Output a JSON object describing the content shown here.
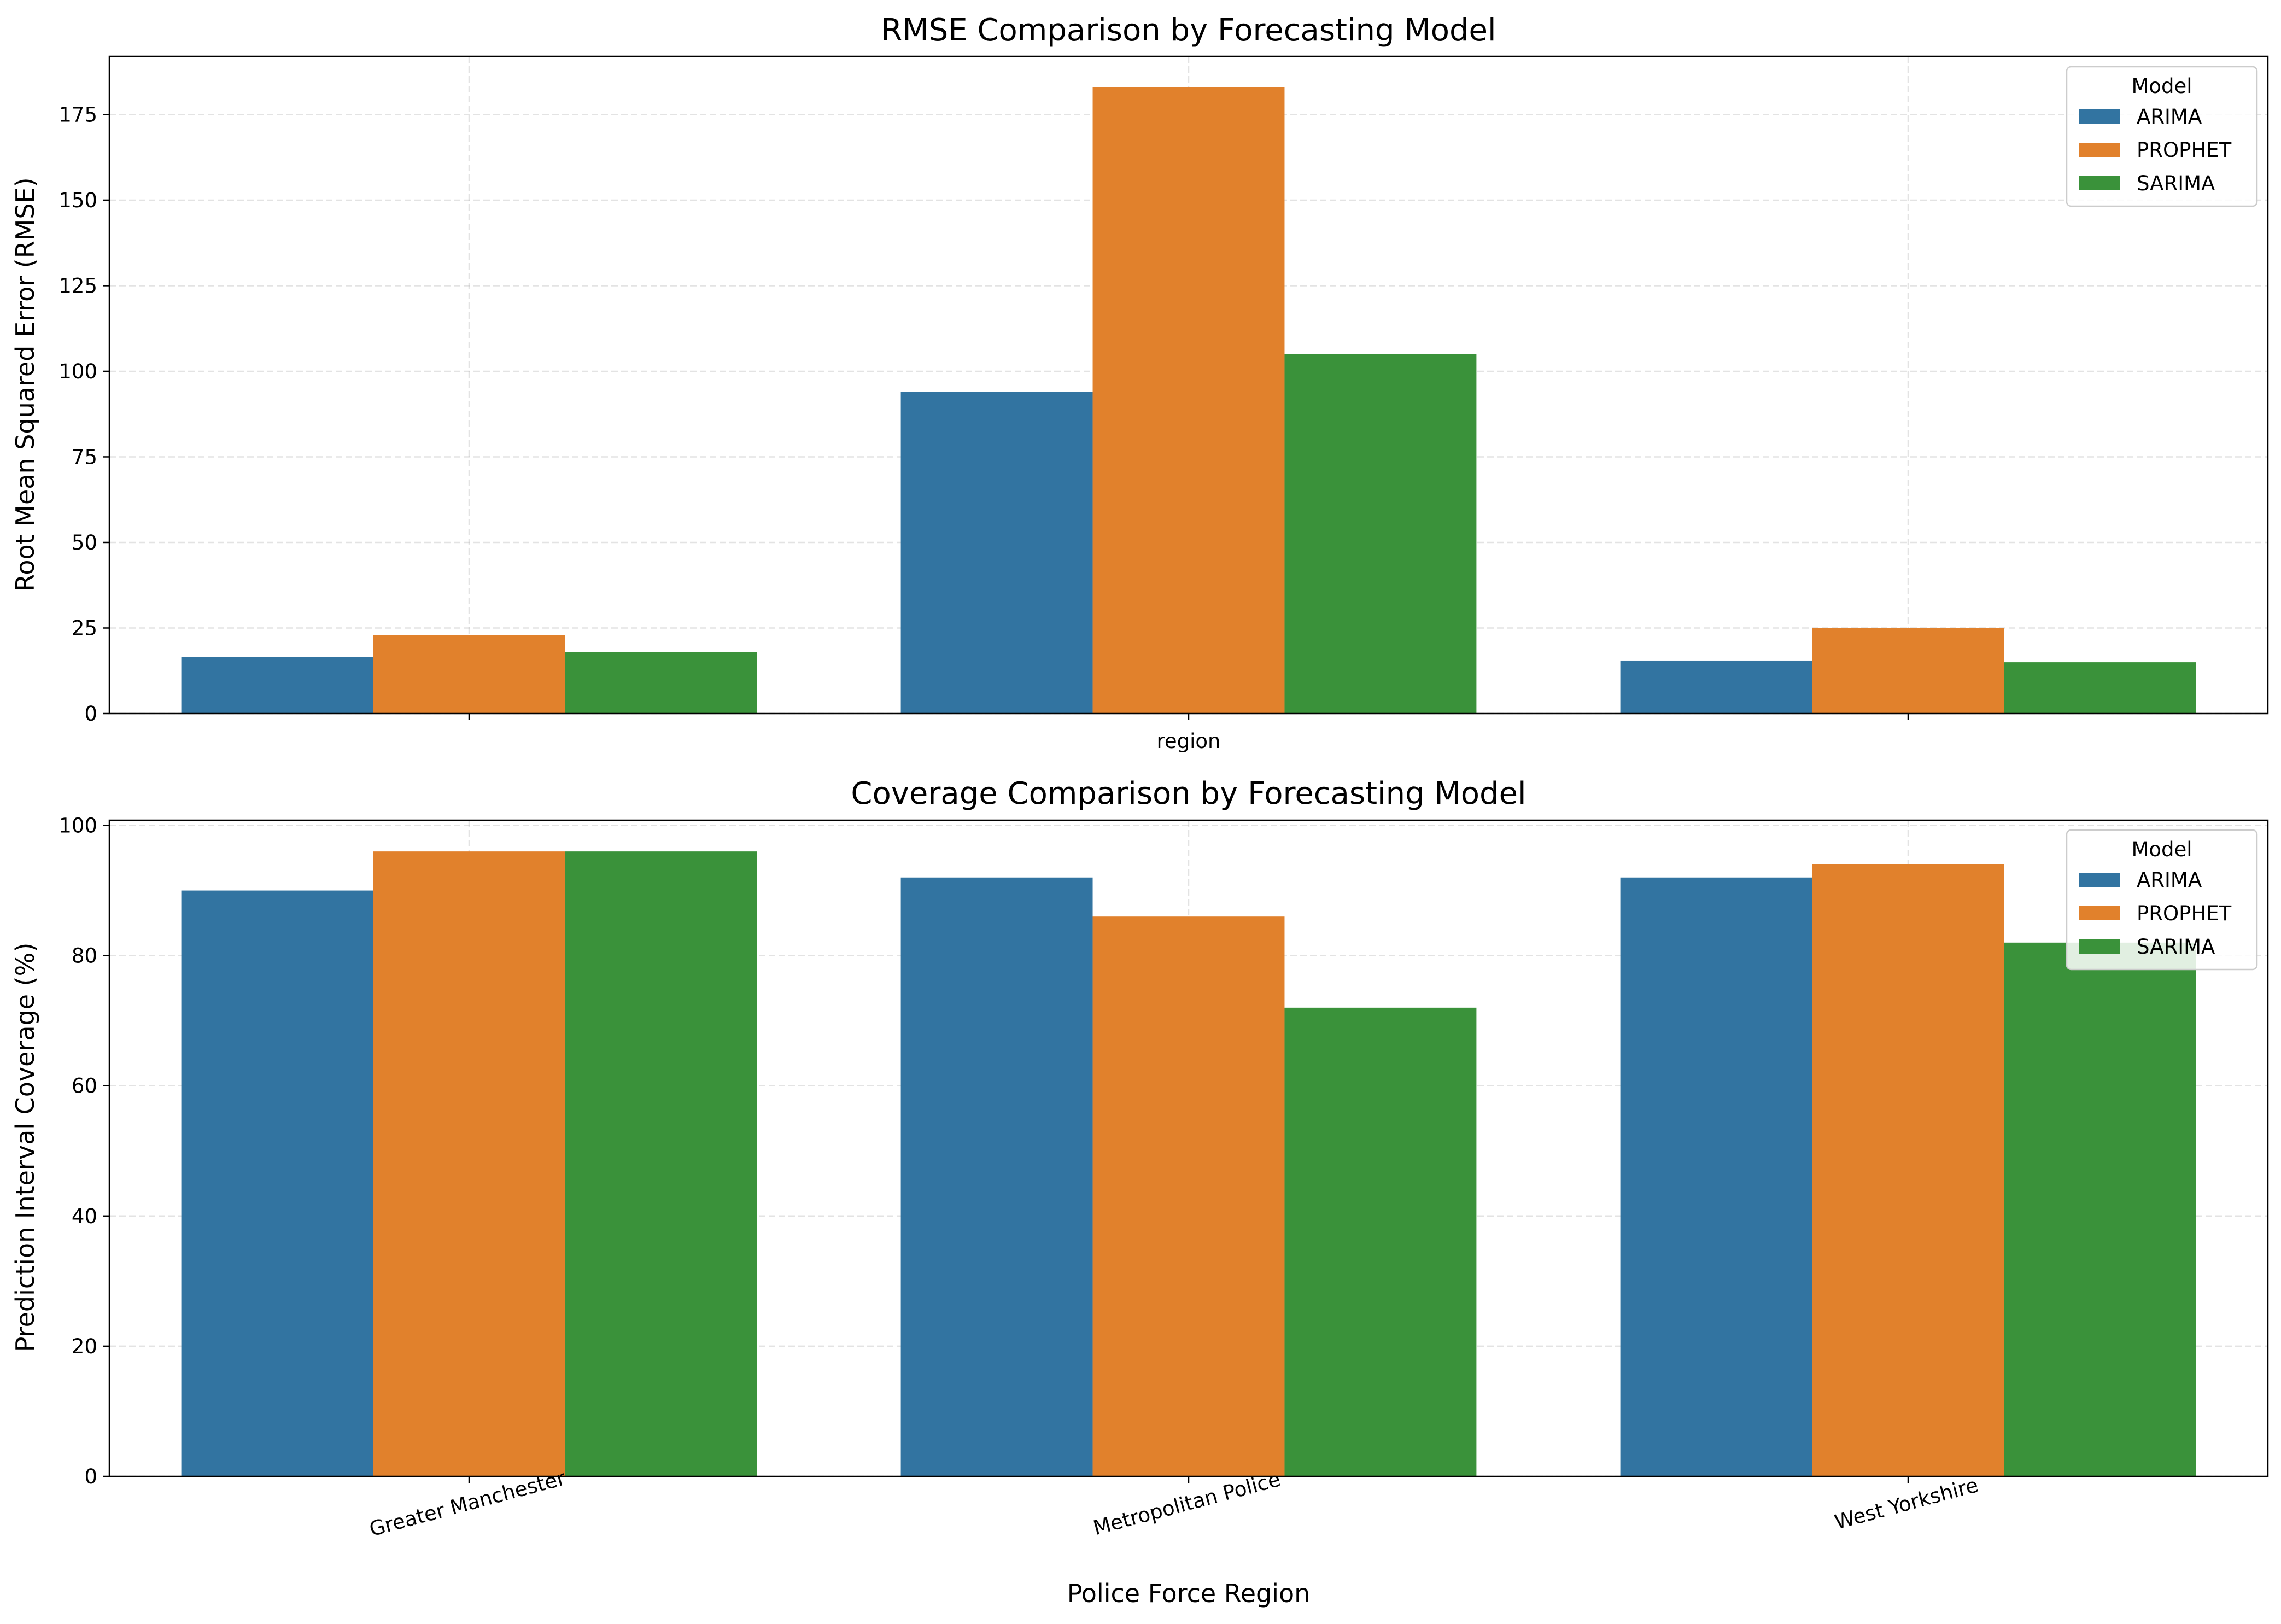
{
  "chart_data": [
    {
      "type": "bar",
      "title": "RMSE Comparison by Forecasting Model",
      "xlabel": "region",
      "ylabel": "Root Mean Squared Error (RMSE)",
      "ylim": [
        0,
        192
      ],
      "yticks": [
        0,
        25,
        50,
        75,
        100,
        125,
        150,
        175
      ],
      "categories": [
        "Greater Manchester",
        "Metropolitan Police",
        "West Yorkshire"
      ],
      "show_category_labels": false,
      "grid": true,
      "legend": {
        "title": "Model",
        "placement": "top-right"
      },
      "series": [
        {
          "name": "ARIMA",
          "color": "#3274a1",
          "values": [
            16.5,
            94,
            15.5
          ]
        },
        {
          "name": "PROPHET",
          "color": "#e1812c",
          "values": [
            23,
            183,
            25
          ]
        },
        {
          "name": "SARIMA",
          "color": "#3a923a",
          "values": [
            18,
            105,
            15
          ]
        }
      ]
    },
    {
      "type": "bar",
      "title": "Coverage Comparison by Forecasting Model",
      "xlabel": "Police Force Region",
      "ylabel": "Prediction Interval Coverage (%)",
      "ylim": [
        0,
        100.8
      ],
      "yticks": [
        0,
        20,
        40,
        60,
        80,
        100
      ],
      "categories": [
        "Greater Manchester",
        "Metropolitan Police",
        "West Yorkshire"
      ],
      "show_category_labels": true,
      "category_label_rotation": -15,
      "grid": true,
      "legend": {
        "title": "Model",
        "placement": "top-right"
      },
      "series": [
        {
          "name": "ARIMA",
          "color": "#3274a1",
          "values": [
            90,
            92,
            92
          ]
        },
        {
          "name": "PROPHET",
          "color": "#e1812c",
          "values": [
            96,
            86,
            94
          ]
        },
        {
          "name": "SARIMA",
          "color": "#3a923a",
          "values": [
            96,
            72,
            82
          ]
        }
      ]
    }
  ]
}
